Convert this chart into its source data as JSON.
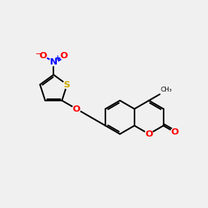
{
  "background_color": "#f0f0f0",
  "bond_color": "#000000",
  "atom_colors": {
    "O": "#ff0000",
    "N": "#0000ff",
    "S": "#ccaa00",
    "C": "#000000"
  },
  "figsize": [
    3.0,
    3.0
  ],
  "dpi": 100
}
